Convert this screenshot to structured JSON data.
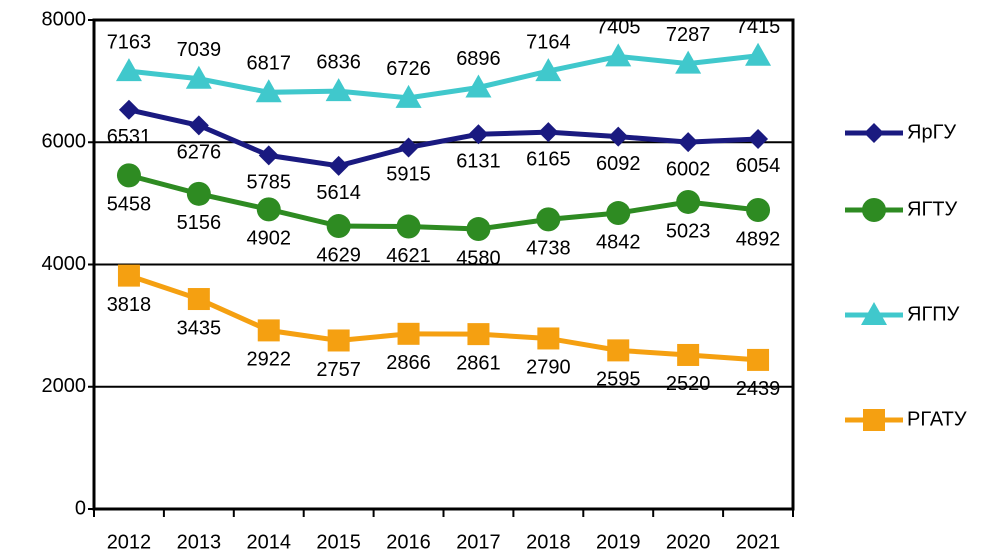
{
  "chart_data": {
    "type": "line",
    "categories": [
      "2012",
      "2013",
      "2014",
      "2015",
      "2016",
      "2017",
      "2018",
      "2019",
      "2020",
      "2021"
    ],
    "series": [
      {
        "name": "ЯрГУ",
        "color": "#1a1a80",
        "marker": "diamond",
        "values": [
          6531,
          6276,
          5785,
          5614,
          5915,
          6131,
          6165,
          6092,
          6002,
          6054
        ]
      },
      {
        "name": "ЯГТУ",
        "color": "#2e8b22",
        "marker": "circle",
        "values": [
          5458,
          5156,
          4902,
          4629,
          4621,
          4580,
          4738,
          4842,
          5023,
          4892
        ]
      },
      {
        "name": "ЯГПУ",
        "color": "#40c8cc",
        "marker": "triangle",
        "values": [
          7163,
          7039,
          6817,
          6836,
          6726,
          6896,
          7164,
          7405,
          7287,
          7415
        ]
      },
      {
        "name": "РГАТУ",
        "color": "#f5a011",
        "marker": "square",
        "values": [
          3818,
          3435,
          2922,
          2757,
          2866,
          2861,
          2790,
          2595,
          2520,
          2439
        ]
      }
    ],
    "ylim": [
      0,
      8000
    ],
    "yticks": [
      0,
      2000,
      4000,
      6000,
      8000
    ],
    "grid": true,
    "legend": "right"
  }
}
